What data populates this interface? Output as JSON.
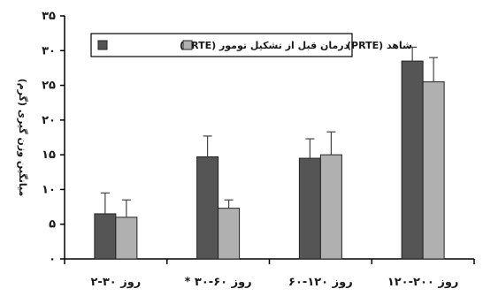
{
  "chart_data": {
    "type": "bar",
    "categories": [
      "روز ۳۰-۲",
      "روز ۶۰-۳۰ *",
      "روز ۱۲۰-۶۰",
      "روز ۲۰۰-۱۲۰"
    ],
    "series": [
      {
        "name": "شاهد (PRTE)",
        "color": "#555555",
        "values": [
          6.5,
          14.7,
          14.5,
          28.5
        ],
        "errors": [
          3.0,
          3.0,
          2.8,
          2.0
        ]
      },
      {
        "name": "درمان قبل از تشکیل تومور (PRTE)",
        "color": "#b0b0b0",
        "values": [
          6.0,
          7.3,
          15.0,
          25.5
        ],
        "errors": [
          2.5,
          1.2,
          3.3,
          3.5
        ]
      }
    ],
    "ylabel": "میانگین وزن گیری (گرم)",
    "ylim": [
      0,
      35
    ],
    "yticks": [
      0,
      5,
      10,
      15,
      20,
      25,
      30,
      35
    ],
    "ytick_labels": [
      "۰",
      "۵",
      "۱۰",
      "۱۵",
      "۲۰",
      "۲۵",
      "۳۰",
      "۳۵"
    ],
    "legend": "top-left",
    "grid": false
  }
}
